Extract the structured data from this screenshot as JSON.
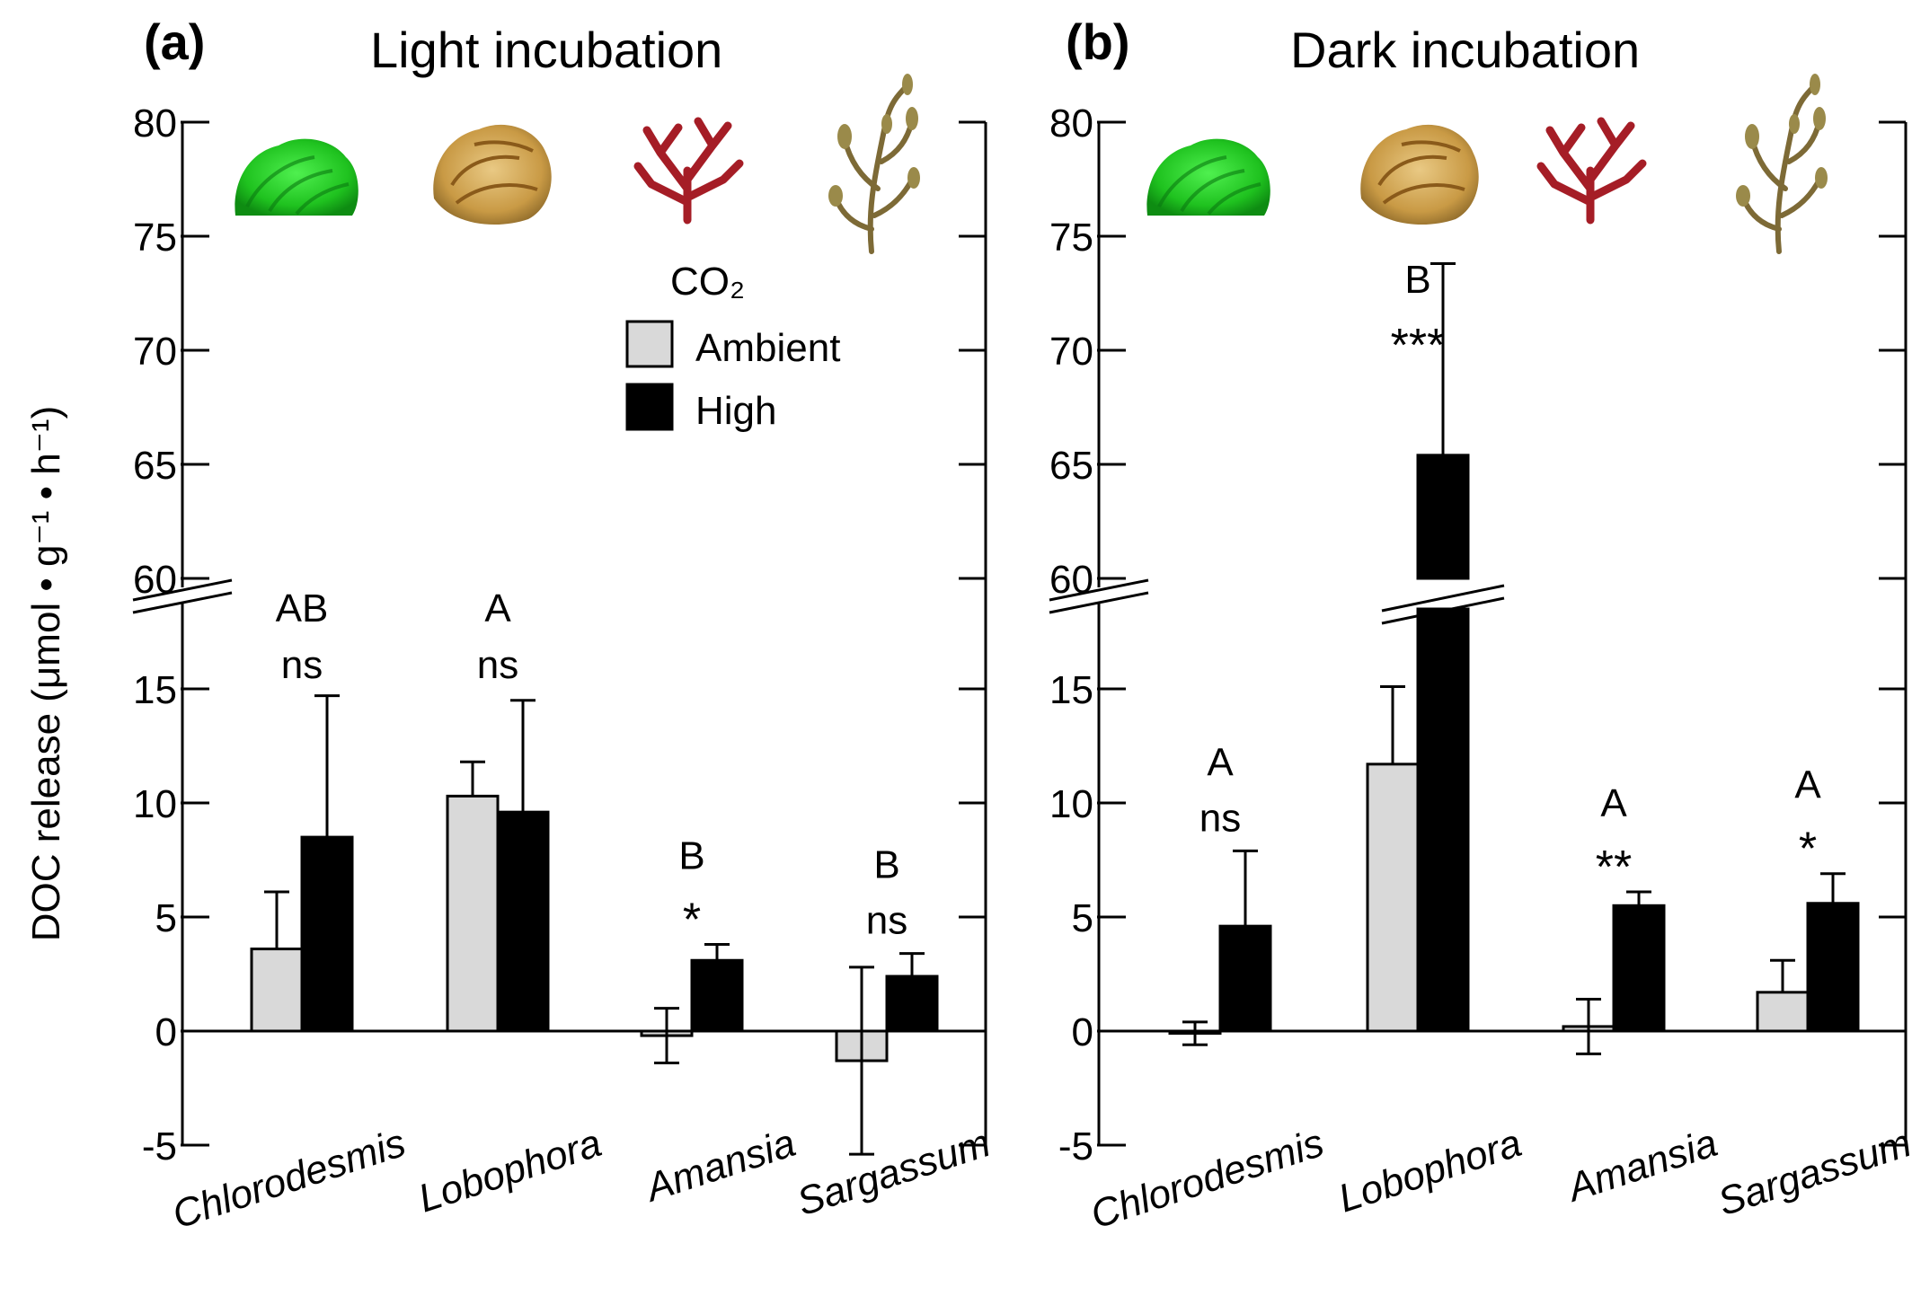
{
  "chart_data": [
    {
      "panel_label": "(a)",
      "title": "Light incubation",
      "type": "bar",
      "categories": [
        "Chlorodesmis",
        "Lobophora",
        "Amansia",
        "Sargassum"
      ],
      "ylabel": "DOC release (μmol • g⁻¹ • h⁻¹)",
      "ylim_lower": [
        -5,
        17
      ],
      "ylim_upper": [
        60,
        80
      ],
      "axis_break": true,
      "yticks_lower": [
        "-5",
        "0",
        "5",
        "10",
        "15"
      ],
      "yticks_upper": [
        "60",
        "65",
        "70",
        "75",
        "80"
      ],
      "legend": {
        "title": "CO₂",
        "entries": [
          "Ambient",
          "High"
        ],
        "placement": "top-center"
      },
      "series": [
        {
          "name": "Ambient",
          "color": "#d9d9d9",
          "values": [
            3.6,
            10.3,
            -0.2,
            -1.3
          ],
          "errors": [
            2.5,
            1.5,
            1.2,
            4.1
          ]
        },
        {
          "name": "High",
          "color": "#000000",
          "values": [
            8.5,
            9.6,
            3.1,
            2.4
          ],
          "errors": [
            6.2,
            4.9,
            0.7,
            1.0
          ]
        }
      ],
      "group_letters": [
        "AB",
        "A",
        "B",
        "B"
      ],
      "significance": [
        "ns",
        "ns",
        "*",
        "ns"
      ]
    },
    {
      "panel_label": "(b)",
      "title": "Dark incubation",
      "type": "bar",
      "categories": [
        "Chlorodesmis",
        "Lobophora",
        "Amansia",
        "Sargassum"
      ],
      "ylim_lower": [
        -5,
        17
      ],
      "ylim_upper": [
        60,
        80
      ],
      "axis_break": true,
      "yticks_lower": [
        "-5",
        "0",
        "5",
        "10",
        "15"
      ],
      "yticks_upper": [
        "60",
        "65",
        "70",
        "75",
        "80"
      ],
      "series": [
        {
          "name": "Ambient",
          "color": "#d9d9d9",
          "values": [
            -0.1,
            11.7,
            0.2,
            1.7
          ],
          "errors": [
            0.5,
            3.4,
            1.2,
            1.4
          ]
        },
        {
          "name": "High",
          "color": "#000000",
          "values": [
            4.6,
            65.4,
            5.5,
            5.6
          ],
          "errors": [
            3.3,
            8.4,
            0.6,
            1.3
          ]
        }
      ],
      "group_letters": [
        "A",
        "B",
        "A",
        "A"
      ],
      "significance": [
        "ns",
        "***",
        "**",
        "*"
      ]
    }
  ],
  "icons": [
    "green-alga-icon",
    "brown-alga-icon",
    "red-alga-icon",
    "sargassum-icon"
  ]
}
